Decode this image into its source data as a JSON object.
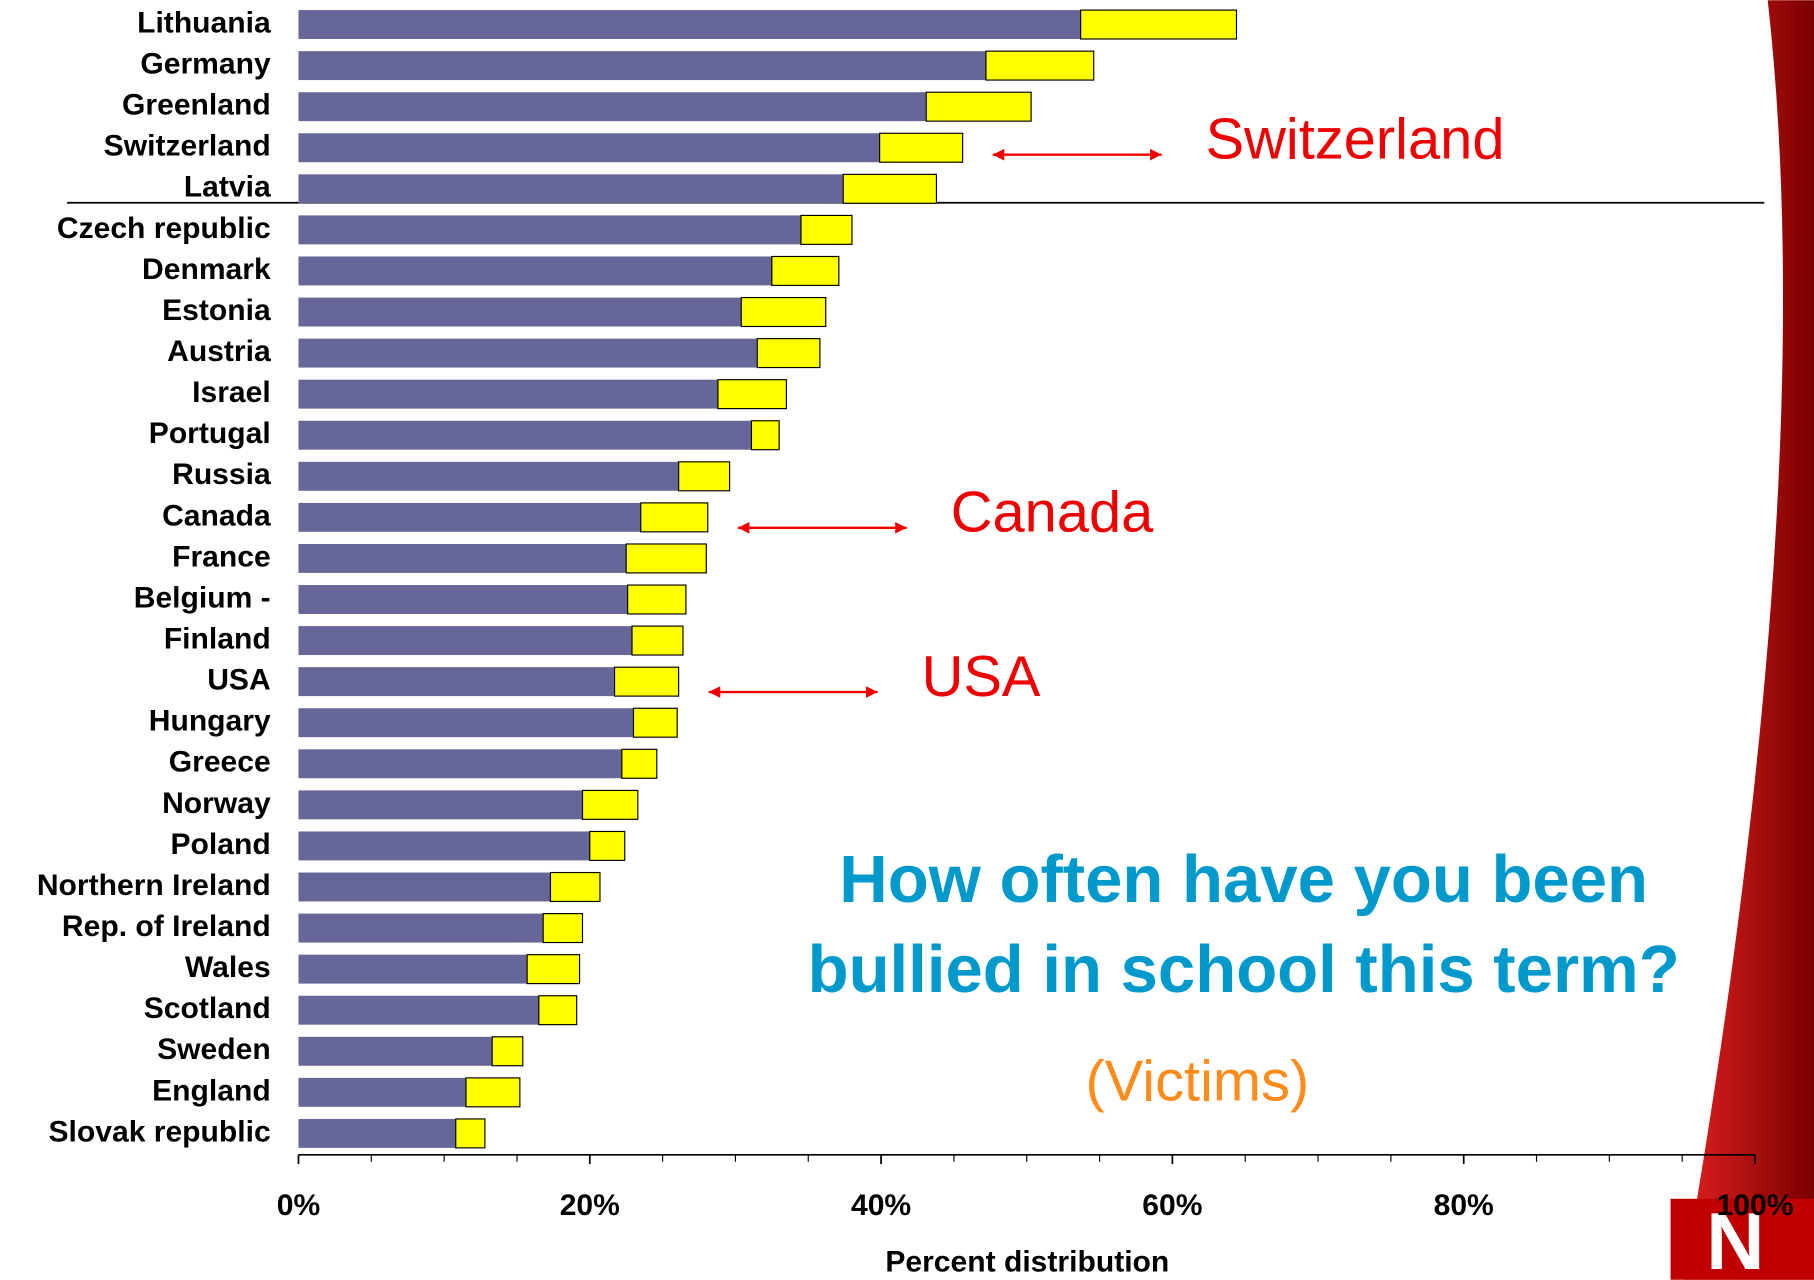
{
  "chart_data": {
    "type": "stacked-barh",
    "title": [
      "How  often have you been",
      "bullied in school this term?"
    ],
    "subtitle": "(Victims)",
    "xlabel": "Percent distribution",
    "categories": [
      "Lithuania",
      "Germany",
      "Greenland",
      "Switzerland",
      "Latvia",
      "Czech republic",
      "Denmark",
      "Estonia",
      "Austria",
      "Israel",
      "Portugal",
      "Russia",
      "Canada",
      "France",
      "Belgium -",
      "Finland",
      "USA",
      "Hungary",
      "Greece",
      "Norway",
      "Poland",
      "Northern Ireland",
      "Rep. of Ireland",
      "Wales",
      "Scotland",
      "Sweden",
      "England",
      "Slovak republic"
    ],
    "series": [
      {
        "color": "#666699",
        "values": [
          53.7,
          47.2,
          43.1,
          39.9,
          37.4,
          34.5,
          32.5,
          30.4,
          31.5,
          28.8,
          31.1,
          26.1,
          23.5,
          22.5,
          22.6,
          22.9,
          21.7,
          23.0,
          22.2,
          19.5,
          20.0,
          17.3,
          16.8,
          15.7,
          16.5,
          13.3,
          11.5,
          10.8
        ]
      },
      {
        "color": "#ffff00",
        "values": [
          10.7,
          7.4,
          7.2,
          5.7,
          6.4,
          3.5,
          4.6,
          5.8,
          4.3,
          4.7,
          1.9,
          3.5,
          4.6,
          5.5,
          4.0,
          3.5,
          4.4,
          3.0,
          2.4,
          3.8,
          2.4,
          3.4,
          2.7,
          3.6,
          2.6,
          2.1,
          3.7,
          2.0
        ]
      }
    ],
    "xlim": [
      0,
      100
    ],
    "xticks": [
      {
        "value": 0,
        "label": "0%"
      },
      {
        "value": 20,
        "label": "20%"
      },
      {
        "value": 40,
        "label": "40%"
      },
      {
        "value": 60,
        "label": "60%"
      },
      {
        "value": 80,
        "label": "80%"
      },
      {
        "value": 100,
        "label": "100%"
      }
    ],
    "xminorticks": [
      5,
      10,
      15,
      25,
      30,
      35,
      45,
      50,
      55,
      65,
      70,
      75,
      85,
      90,
      95
    ],
    "annotations": [
      {
        "text": "Switzerland",
        "category": 3
      },
      {
        "text": "Canada",
        "category": 12
      },
      {
        "text": "USA",
        "category": 16
      }
    ]
  }
}
